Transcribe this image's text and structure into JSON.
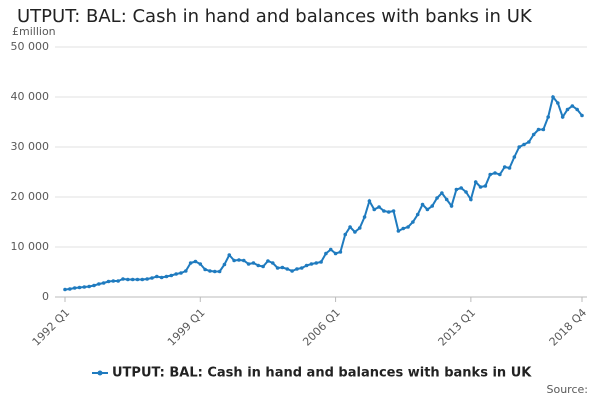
{
  "chart_data": {
    "type": "line",
    "title": "UTPUT: BAL: Cash in hand and balances with banks in UK",
    "y_label": "£million",
    "source": "Source:",
    "categories": [
      "1992 Q1",
      null,
      null,
      null,
      null,
      null,
      null,
      null,
      null,
      null,
      null,
      null,
      null,
      null,
      null,
      null,
      null,
      null,
      null,
      null,
      null,
      null,
      null,
      null,
      null,
      null,
      null,
      null,
      "1999 Q1",
      null,
      null,
      null,
      null,
      null,
      null,
      null,
      null,
      null,
      null,
      null,
      null,
      null,
      null,
      null,
      null,
      null,
      null,
      null,
      null,
      null,
      null,
      null,
      null,
      null,
      null,
      null,
      "2006 Q1",
      null,
      null,
      null,
      null,
      null,
      null,
      null,
      null,
      null,
      null,
      null,
      null,
      null,
      null,
      null,
      null,
      null,
      null,
      null,
      null,
      null,
      null,
      null,
      null,
      null,
      null,
      null,
      "2013 Q1",
      null,
      null,
      null,
      null,
      null,
      null,
      null,
      null,
      null,
      null,
      null,
      null,
      null,
      null,
      null,
      null,
      null,
      null,
      null,
      null,
      null,
      null,
      "2018 Q4"
    ],
    "series": [
      {
        "name": "UTPUT: BAL: Cash in hand and balances with banks in UK",
        "color": "#1f7bbf",
        "values": [
          1500,
          1600,
          1800,
          1900,
          2000,
          2100,
          2300,
          2600,
          2800,
          3100,
          3200,
          3200,
          3600,
          3500,
          3500,
          3500,
          3500,
          3600,
          3800,
          4100,
          3900,
          4100,
          4300,
          4600,
          4800,
          5200,
          6800,
          7100,
          6600,
          5500,
          5200,
          5100,
          5100,
          6500,
          8400,
          7300,
          7400,
          7300,
          6600,
          6800,
          6300,
          6100,
          7200,
          6800,
          5800,
          5900,
          5600,
          5200,
          5600,
          5800,
          6300,
          6600,
          6800,
          7000,
          8700,
          9500,
          8700,
          9000,
          12500,
          14000,
          13000,
          13800,
          16000,
          19200,
          17500,
          18000,
          17200,
          17000,
          17200,
          13200,
          13700,
          14000,
          15000,
          16500,
          18500,
          17500,
          18200,
          19800,
          20800,
          19500,
          18200,
          21500,
          21800,
          21000,
          19500,
          23000,
          22000,
          22200,
          24500,
          24800,
          24500,
          26000,
          25800,
          28000,
          30000,
          30500,
          31000,
          32500,
          33500,
          33500,
          36000,
          40000,
          38800,
          36000,
          37500,
          38200,
          37500,
          36300
        ]
      }
    ],
    "ylim": [
      0,
      50000
    ],
    "yticks": [
      0,
      {
        "value": 10000,
        "label": "10 000"
      },
      {
        "value": 20000,
        "label": "20 000"
      },
      {
        "value": 30000,
        "label": "30 000"
      },
      {
        "value": 40000,
        "label": "40 000"
      },
      {
        "value": 50000,
        "label": "50 000"
      }
    ],
    "grid": true,
    "legend": "bottom"
  }
}
